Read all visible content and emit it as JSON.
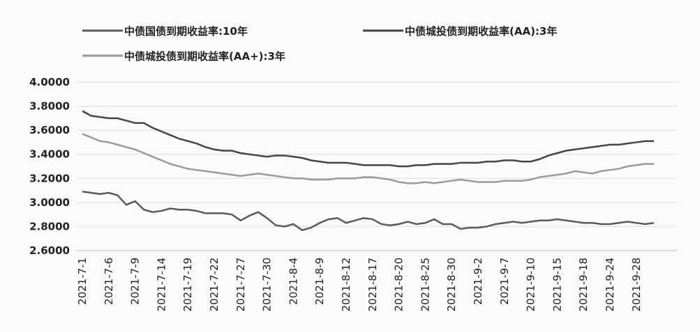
{
  "chart_data": {
    "type": "line",
    "categories": [
      "2021-7-1",
      null,
      null,
      "2021-7-6",
      null,
      null,
      "2021-7-9",
      null,
      null,
      "2021-7-14",
      null,
      null,
      "2021-7-19",
      null,
      null,
      "2021-7-22",
      null,
      null,
      "2021-7-27",
      null,
      null,
      "2021-7-30",
      null,
      null,
      "2021-8-4",
      null,
      null,
      "2021-8-9",
      null,
      null,
      "2021-8-12",
      null,
      null,
      "2021-8-17",
      null,
      null,
      "2021-8-20",
      null,
      null,
      "2021-8-25",
      null,
      null,
      "2021-8-30",
      null,
      null,
      "2021-9-2",
      null,
      null,
      "2021-9-7",
      null,
      null,
      "2021-9-10",
      null,
      null,
      "2021-9-15",
      null,
      null,
      "2021-9-18",
      null,
      null,
      "2021-9-24",
      null,
      null,
      "2021-9-28",
      null,
      null
    ],
    "series": [
      {
        "name": "中债国债到期收益率:10年",
        "color": "#5a5a5a",
        "values": [
          3.09,
          3.08,
          3.07,
          3.08,
          3.06,
          2.98,
          3.01,
          2.94,
          2.92,
          2.93,
          2.95,
          2.94,
          2.94,
          2.93,
          2.91,
          2.91,
          2.91,
          2.9,
          2.85,
          2.89,
          2.92,
          2.87,
          2.81,
          2.8,
          2.82,
          2.77,
          2.79,
          2.83,
          2.86,
          2.87,
          2.83,
          2.85,
          2.87,
          2.86,
          2.82,
          2.81,
          2.82,
          2.84,
          2.82,
          2.83,
          2.86,
          2.82,
          2.82,
          2.78,
          2.79,
          2.79,
          2.8,
          2.82,
          2.83,
          2.84,
          2.83,
          2.84,
          2.85,
          2.85,
          2.86,
          2.85,
          2.84,
          2.83,
          2.83,
          2.82,
          2.82,
          2.83,
          2.84,
          2.83,
          2.82,
          2.83
        ]
      },
      {
        "name": "中债城投债到期收益率(AA):3年",
        "color": "#454545",
        "values": [
          3.76,
          3.72,
          3.71,
          3.7,
          3.7,
          3.68,
          3.66,
          3.66,
          3.62,
          3.59,
          3.56,
          3.53,
          3.51,
          3.49,
          3.46,
          3.44,
          3.43,
          3.43,
          3.41,
          3.4,
          3.39,
          3.38,
          3.39,
          3.39,
          3.38,
          3.37,
          3.35,
          3.34,
          3.33,
          3.33,
          3.33,
          3.32,
          3.31,
          3.31,
          3.31,
          3.31,
          3.3,
          3.3,
          3.31,
          3.31,
          3.32,
          3.32,
          3.32,
          3.33,
          3.33,
          3.33,
          3.34,
          3.34,
          3.35,
          3.35,
          3.34,
          3.34,
          3.36,
          3.39,
          3.41,
          3.43,
          3.44,
          3.45,
          3.46,
          3.47,
          3.48,
          3.48,
          3.49,
          3.5,
          3.51,
          3.51
        ]
      },
      {
        "name": "中债城投债到期收益率(AA+):3年",
        "color": "#9a9a9a",
        "values": [
          3.57,
          3.54,
          3.51,
          3.5,
          3.48,
          3.46,
          3.44,
          3.41,
          3.38,
          3.35,
          3.32,
          3.3,
          3.28,
          3.27,
          3.26,
          3.25,
          3.24,
          3.23,
          3.22,
          3.23,
          3.24,
          3.23,
          3.22,
          3.21,
          3.2,
          3.2,
          3.19,
          3.19,
          3.19,
          3.2,
          3.2,
          3.2,
          3.21,
          3.21,
          3.2,
          3.19,
          3.17,
          3.16,
          3.16,
          3.17,
          3.16,
          3.17,
          3.18,
          3.19,
          3.18,
          3.17,
          3.17,
          3.17,
          3.18,
          3.18,
          3.18,
          3.19,
          3.21,
          3.22,
          3.23,
          3.24,
          3.26,
          3.25,
          3.24,
          3.26,
          3.27,
          3.28,
          3.3,
          3.31,
          3.32,
          3.32
        ]
      }
    ],
    "ylim": [
      2.6,
      4.0
    ],
    "yticks": [
      {
        "value": 2.6,
        "label": "2.6000"
      },
      {
        "value": 2.8,
        "label": "2.8000"
      },
      {
        "value": 3.0,
        "label": "3.0000"
      },
      {
        "value": 3.2,
        "label": "3.2000"
      },
      {
        "value": 3.4,
        "label": "3.4000"
      },
      {
        "value": 3.6,
        "label": "3.6000"
      },
      {
        "value": 3.8,
        "label": "3.8000"
      },
      {
        "value": 4.0,
        "label": "4.0000"
      }
    ],
    "grid": true
  }
}
